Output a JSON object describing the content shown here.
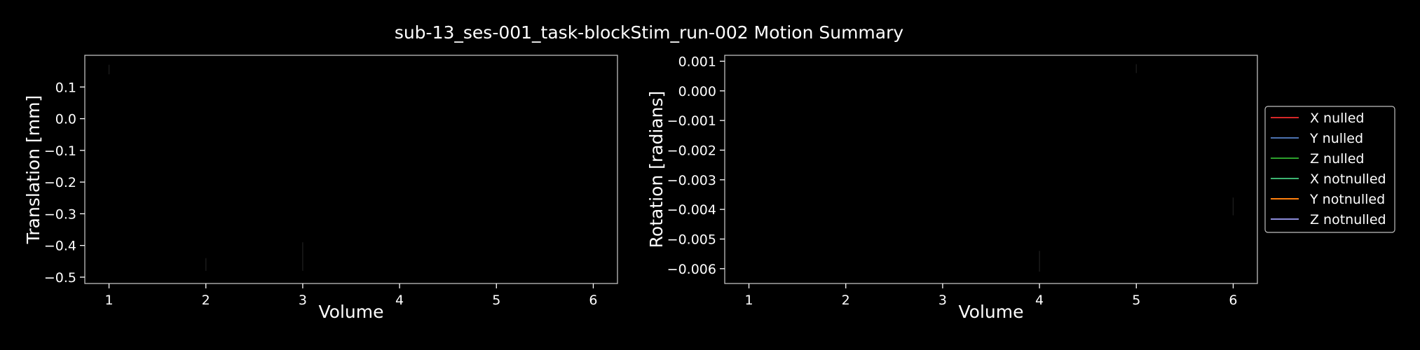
{
  "chart_data": {
    "title": "sub-13_ses-001_task-blockStim_run-002 Motion Summary",
    "legend": {
      "placement": "right",
      "entries": [
        {
          "name": "X nulled",
          "color": "#d62728"
        },
        {
          "name": "Y nulled",
          "color": "#4c72b0"
        },
        {
          "name": "Z nulled",
          "color": "#2ca02c"
        },
        {
          "name": "X notnulled",
          "color": "#3cb371"
        },
        {
          "name": "Y notnulled",
          "color": "#ff7f0e"
        },
        {
          "name": "Z notnulled",
          "color": "#8c8cd9"
        }
      ]
    },
    "panels": [
      {
        "type": "line",
        "ylabel": "Translation [mm]",
        "xlabel": "Volume",
        "xlim": [
          0.75,
          6.25
        ],
        "ylim": [
          -0.52,
          0.2
        ],
        "xticks": [
          1,
          2,
          3,
          4,
          5,
          6
        ],
        "yticks": [
          0.1,
          0.0,
          -0.1,
          -0.2,
          -0.3,
          -0.4,
          -0.5
        ],
        "ytick_labels": [
          "0.1",
          "0.0",
          "−0.1",
          "−0.2",
          "−0.3",
          "−0.4",
          "−0.5"
        ],
        "series": [
          {
            "color": "#1a1a1a",
            "segments": [
              [
                1,
                0.14,
                0.17
              ],
              [
                2,
                -0.44,
                -0.48
              ],
              [
                3,
                -0.39,
                -0.48
              ]
            ]
          }
        ]
      },
      {
        "type": "line",
        "ylabel": "Rotation [radians]",
        "xlabel": "Volume",
        "xlim": [
          0.75,
          6.25
        ],
        "ylim": [
          -0.0065,
          0.0012
        ],
        "xticks": [
          1,
          2,
          3,
          4,
          5,
          6
        ],
        "yticks": [
          0.001,
          0.0,
          -0.001,
          -0.002,
          -0.003,
          -0.004,
          -0.005,
          -0.006
        ],
        "ytick_labels": [
          "0.001",
          "0.000",
          "−0.001",
          "−0.002",
          "−0.003",
          "−0.004",
          "−0.005",
          "−0.006"
        ],
        "series": [
          {
            "color": "#1a1a1a",
            "segments": [
              [
                4,
                -0.0054,
                -0.0061
              ],
              [
                5,
                0.0009,
                0.0006
              ],
              [
                6,
                -0.0036,
                -0.0042
              ]
            ]
          }
        ]
      }
    ]
  }
}
